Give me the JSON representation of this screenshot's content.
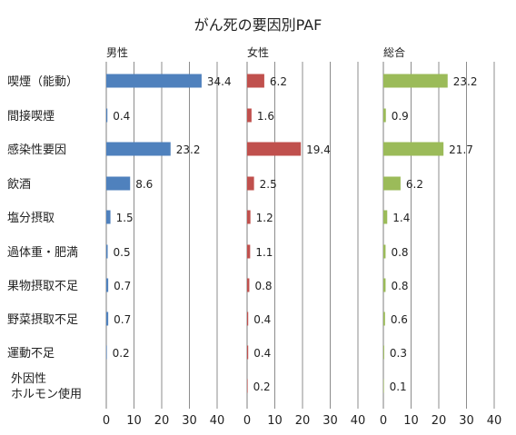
{
  "chart_data": {
    "type": "bar",
    "orientation": "horizontal",
    "title": "がん死の要因別PAF",
    "categories": [
      "喫煙（能動）",
      "間接喫煙",
      "感染性要因",
      "飲酒",
      "塩分摂取",
      "過体重・肥満",
      "果物摂取不足",
      "野菜摂取不足",
      "運動不足",
      "外因性\nホルモン使用"
    ],
    "xlim": [
      0,
      40
    ],
    "xticks": [
      0,
      10,
      20,
      30,
      40
    ],
    "grid": true,
    "panels": [
      {
        "label": "男性",
        "color": "#4f81bd",
        "values": [
          34.4,
          0.4,
          23.2,
          8.6,
          1.5,
          0.5,
          0.7,
          0.7,
          0.2,
          null
        ]
      },
      {
        "label": "女性",
        "color": "#c0504d",
        "values": [
          6.2,
          1.6,
          19.4,
          2.5,
          1.2,
          1.1,
          0.8,
          0.4,
          0.4,
          0.2
        ]
      },
      {
        "label": "総合",
        "color": "#9bbb59",
        "values": [
          23.2,
          0.9,
          21.7,
          6.2,
          1.4,
          0.8,
          0.8,
          0.6,
          0.3,
          0.1
        ]
      }
    ]
  }
}
